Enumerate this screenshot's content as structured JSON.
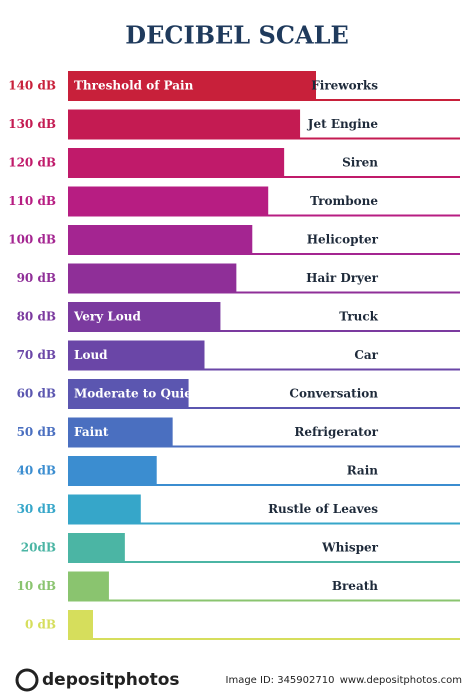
{
  "chart_data": {
    "type": "bar",
    "orientation": "horizontal",
    "title": "DECIBEL SCALE",
    "categories": [
      "140 dB",
      "130 dB",
      "120 dB",
      "110 dB",
      "100 dB",
      "90 dB",
      "80 dB",
      "70 dB",
      "60 dB",
      "50 dB",
      "40 dB",
      "30 dB",
      "20dB",
      "10 dB",
      "0 dB"
    ],
    "values": [
      140,
      130,
      120,
      110,
      100,
      90,
      80,
      70,
      60,
      50,
      40,
      30,
      20,
      10,
      0
    ],
    "bar_labels": [
      "Threshold of Pain",
      null,
      null,
      null,
      null,
      null,
      "Very Loud",
      "Loud",
      "Moderate to Quiet",
      "Faint",
      null,
      null,
      null,
      null,
      null
    ],
    "sources": [
      "Fireworks",
      "Jet Engine",
      "Siren",
      "Trombone",
      "Helicopter",
      "Hair Dryer",
      "Truck",
      "Car",
      "Conversation",
      "Refrigerator",
      "Rain",
      "Rustle of Leaves",
      "Whisper",
      "Breath",
      null
    ],
    "colors": [
      "#c8203a",
      "#c41b52",
      "#c01a6a",
      "#b71d82",
      "#a42591",
      "#8f2f98",
      "#7b3a9f",
      "#6a46a7",
      "#5b56b0",
      "#4a6fc0",
      "#3b8dd0",
      "#36a6c9",
      "#4bb5a4",
      "#8ac46f",
      "#d6de5c"
    ]
  },
  "footer": {
    "logo": "depositphotos",
    "image_id": "Image ID: 345902710",
    "site": "www.depositphotos.com"
  }
}
